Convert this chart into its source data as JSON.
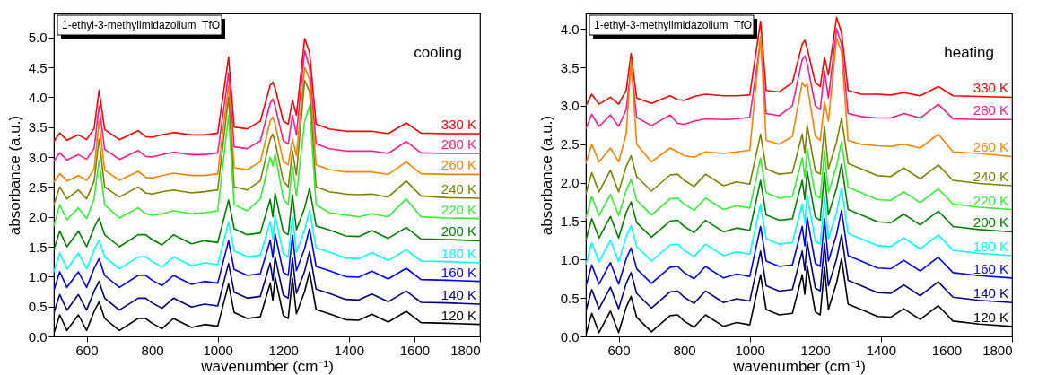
{
  "chart_data": [
    {
      "type": "line",
      "title": "1-ethyl-3-methylimidazolium_TfO",
      "annotations": [
        "cooling"
      ],
      "xlabel": "wavenumber (cm⁻¹)",
      "ylabel": "absorbance (a.u.)",
      "legend": false,
      "x": [
        500,
        518,
        540,
        575,
        600,
        623,
        638,
        655,
        700,
        757,
        780,
        800,
        830,
        865,
        920,
        960,
        1000,
        1033,
        1050,
        1090,
        1130,
        1160,
        1168,
        1175,
        1200,
        1215,
        1228,
        1240,
        1265,
        1280,
        1300,
        1340,
        1390,
        1430,
        1470,
        1520,
        1575,
        1620,
        1700,
        1800
      ],
      "xlim": [
        500,
        1800
      ],
      "xticks": [
        600,
        800,
        1000,
        1200,
        1400,
        1600,
        1800
      ],
      "ylim": [
        0,
        5.4
      ],
      "yticks": [
        {
          "value": 0,
          "label": "0.0"
        },
        {
          "value": 0.5,
          "label": "0.5"
        },
        {
          "value": 1,
          "label": "1.0"
        },
        {
          "value": 1.5,
          "label": "1.5"
        },
        {
          "value": 2,
          "label": "2.0"
        },
        {
          "value": 2.5,
          "label": "2.5"
        },
        {
          "value": 3,
          "label": "3.0"
        },
        {
          "value": 3.5,
          "label": "3.5"
        },
        {
          "value": 4,
          "label": "4.0"
        },
        {
          "value": 4.5,
          "label": "4.5"
        },
        {
          "value": 5,
          "label": "5.0"
        }
      ],
      "series": [
        {
          "name": "330 K",
          "color": "#ff0000",
          "values": [
            3.26,
            3.4,
            3.28,
            3.37,
            3.29,
            3.48,
            4.12,
            3.46,
            3.29,
            3.44,
            3.34,
            3.33,
            3.37,
            3.41,
            3.37,
            3.37,
            3.4,
            4.67,
            3.5,
            3.47,
            3.6,
            4.2,
            4.25,
            4.15,
            3.6,
            3.55,
            3.95,
            3.7,
            4.98,
            4.75,
            3.55,
            3.47,
            3.43,
            3.43,
            3.43,
            3.39,
            3.57,
            3.4,
            3.39,
            3.39
          ]
        },
        {
          "name": "280 K",
          "color": "#ff1a8c",
          "values": [
            2.93,
            3.07,
            2.95,
            3.04,
            2.96,
            3.15,
            3.85,
            3.13,
            2.96,
            3.11,
            3.01,
            3.0,
            3.04,
            3.08,
            3.04,
            3.04,
            3.07,
            4.4,
            3.17,
            3.14,
            3.27,
            3.9,
            3.97,
            3.85,
            3.27,
            3.22,
            3.7,
            3.37,
            4.78,
            4.5,
            3.22,
            3.14,
            3.1,
            3.1,
            3.1,
            3.06,
            3.26,
            3.07,
            3.06,
            3.06
          ]
        },
        {
          "name": "260 K",
          "color": "#ff8000",
          "values": [
            2.58,
            2.72,
            2.6,
            2.69,
            2.61,
            2.8,
            3.6,
            2.78,
            2.61,
            2.76,
            2.66,
            2.65,
            2.69,
            2.73,
            2.69,
            2.69,
            2.72,
            4.2,
            2.82,
            2.79,
            2.92,
            3.6,
            3.67,
            3.55,
            2.92,
            2.87,
            3.3,
            3.02,
            4.5,
            4.3,
            2.87,
            2.79,
            2.75,
            2.75,
            2.75,
            2.71,
            2.92,
            2.72,
            2.71,
            2.71
          ]
        },
        {
          "name": "240 K",
          "color": "#808000",
          "values": [
            2.2,
            2.5,
            2.3,
            2.45,
            2.3,
            2.6,
            3.3,
            2.5,
            2.33,
            2.5,
            2.4,
            2.38,
            2.42,
            2.45,
            2.4,
            2.42,
            2.45,
            4.0,
            2.5,
            2.45,
            2.6,
            3.3,
            3.38,
            3.25,
            2.6,
            2.5,
            3.1,
            2.7,
            4.28,
            4.1,
            2.5,
            2.42,
            2.38,
            2.37,
            2.38,
            2.33,
            2.6,
            2.35,
            2.32,
            2.31
          ]
        },
        {
          "name": "220 K",
          "color": "#33ee33",
          "values": [
            1.85,
            2.2,
            1.95,
            2.15,
            1.97,
            2.3,
            2.95,
            2.2,
            1.98,
            2.15,
            2.05,
            2.03,
            2.05,
            2.1,
            2.05,
            2.07,
            2.1,
            3.7,
            2.2,
            2.1,
            2.3,
            3.0,
            2.85,
            3.05,
            2.3,
            2.2,
            2.85,
            2.35,
            3.6,
            3.86,
            2.2,
            2.07,
            2.03,
            2.0,
            2.05,
            2.0,
            2.3,
            2.0,
            1.98,
            1.97
          ]
        },
        {
          "name": "200 K",
          "color": "#008000",
          "values": [
            1.45,
            1.76,
            1.5,
            1.76,
            1.5,
            1.82,
            1.98,
            1.7,
            1.5,
            1.7,
            1.7,
            1.62,
            1.53,
            1.7,
            1.55,
            1.6,
            1.57,
            2.28,
            1.8,
            1.7,
            1.73,
            2.29,
            2.0,
            2.39,
            1.75,
            1.7,
            2.37,
            1.78,
            2.15,
            2.48,
            1.85,
            1.78,
            1.68,
            1.67,
            1.77,
            1.64,
            1.82,
            1.63,
            1.62,
            1.6
          ]
        },
        {
          "name": "180 K",
          "color": "#00ffff",
          "values": [
            1.08,
            1.39,
            1.13,
            1.39,
            1.13,
            1.45,
            1.61,
            1.33,
            1.13,
            1.33,
            1.33,
            1.25,
            1.16,
            1.33,
            1.18,
            1.23,
            1.2,
            1.91,
            1.43,
            1.33,
            1.36,
            1.92,
            1.63,
            2.02,
            1.38,
            1.33,
            2.0,
            1.41,
            1.78,
            2.11,
            1.48,
            1.41,
            1.31,
            1.3,
            1.4,
            1.27,
            1.45,
            1.26,
            1.25,
            1.23
          ]
        },
        {
          "name": "160 K",
          "color": "#0000ff",
          "values": [
            0.77,
            1.08,
            0.82,
            1.08,
            0.82,
            1.14,
            1.3,
            1.02,
            0.82,
            1.02,
            1.02,
            0.94,
            0.85,
            1.02,
            0.87,
            0.92,
            0.89,
            1.6,
            1.12,
            1.02,
            1.05,
            1.61,
            1.32,
            1.71,
            1.07,
            1.02,
            1.69,
            1.1,
            1.47,
            1.8,
            1.17,
            1.1,
            1.0,
            0.99,
            1.09,
            0.96,
            1.14,
            0.95,
            0.94,
            0.92
          ]
        },
        {
          "name": "140 K",
          "color": "#000080",
          "values": [
            0.39,
            0.7,
            0.44,
            0.7,
            0.44,
            0.76,
            0.92,
            0.64,
            0.44,
            0.64,
            0.64,
            0.56,
            0.47,
            0.64,
            0.49,
            0.54,
            0.51,
            1.22,
            0.74,
            0.64,
            0.67,
            1.23,
            0.94,
            1.33,
            0.69,
            0.64,
            1.31,
            0.72,
            1.09,
            1.42,
            0.79,
            0.72,
            0.62,
            0.61,
            0.71,
            0.58,
            0.76,
            0.57,
            0.56,
            0.54
          ]
        },
        {
          "name": "120 K",
          "color": "#000000",
          "values": [
            0.05,
            0.36,
            0.1,
            0.36,
            0.1,
            0.42,
            0.58,
            0.3,
            0.1,
            0.3,
            0.3,
            0.22,
            0.13,
            0.3,
            0.15,
            0.2,
            0.17,
            0.88,
            0.4,
            0.3,
            0.33,
            0.89,
            0.6,
            0.99,
            0.35,
            0.3,
            0.97,
            0.38,
            0.75,
            1.08,
            0.45,
            0.38,
            0.28,
            0.27,
            0.37,
            0.24,
            0.42,
            0.23,
            0.22,
            0.2
          ]
        }
      ]
    },
    {
      "type": "line",
      "title": "1-ethyl-3-methylimidazolium_TfO",
      "annotations": [
        "heating"
      ],
      "xlabel": "wavenumber (cm⁻¹)",
      "ylabel": "absorbance (a.u.)",
      "legend": false,
      "x": [
        500,
        518,
        540,
        575,
        600,
        623,
        638,
        655,
        700,
        757,
        780,
        800,
        830,
        865,
        920,
        960,
        1000,
        1033,
        1050,
        1090,
        1130,
        1160,
        1168,
        1175,
        1200,
        1215,
        1228,
        1240,
        1265,
        1280,
        1300,
        1340,
        1390,
        1430,
        1470,
        1520,
        1575,
        1620,
        1700,
        1800
      ],
      "xlim": [
        500,
        1800
      ],
      "xticks": [
        600,
        800,
        1000,
        1200,
        1400,
        1600,
        1800
      ],
      "ylim": [
        0,
        4.2
      ],
      "yticks": [
        {
          "value": 0,
          "label": "0.0"
        },
        {
          "value": 0.5,
          "label": "0.5"
        },
        {
          "value": 1,
          "label": "1.0"
        },
        {
          "value": 1.5,
          "label": "1.5"
        },
        {
          "value": 2,
          "label": "2.0"
        },
        {
          "value": 2.5,
          "label": "2.5"
        },
        {
          "value": 3,
          "label": "3.0"
        },
        {
          "value": 3.5,
          "label": "3.5"
        },
        {
          "value": 4,
          "label": "4.0"
        }
      ],
      "series": [
        {
          "name": "330 K",
          "color": "#ff0000",
          "values": [
            3.0,
            3.15,
            3.02,
            3.11,
            3.02,
            3.2,
            3.68,
            3.1,
            3.03,
            3.13,
            3.08,
            3.07,
            3.12,
            3.15,
            3.13,
            3.13,
            3.14,
            4.1,
            3.2,
            3.18,
            3.3,
            3.8,
            3.85,
            3.75,
            3.3,
            3.25,
            3.63,
            3.4,
            4.15,
            3.95,
            3.2,
            3.15,
            3.15,
            3.14,
            3.17,
            3.13,
            3.25,
            3.13,
            3.12,
            3.11
          ]
        },
        {
          "name": "280 K",
          "color": "#ff1a8c",
          "values": [
            2.7,
            2.89,
            2.73,
            2.88,
            2.73,
            2.95,
            3.5,
            2.85,
            2.74,
            2.88,
            2.77,
            2.76,
            2.8,
            2.83,
            2.82,
            2.83,
            2.85,
            3.85,
            2.9,
            2.87,
            3.0,
            3.6,
            3.65,
            3.55,
            3.0,
            2.95,
            3.45,
            3.1,
            4.0,
            3.8,
            2.9,
            2.86,
            2.84,
            2.84,
            2.9,
            2.84,
            3.02,
            2.83,
            2.82,
            2.82
          ]
        },
        {
          "name": "260 K",
          "color": "#ff8000",
          "values": [
            2.25,
            2.5,
            2.27,
            2.45,
            2.27,
            2.63,
            3.6,
            2.5,
            2.27,
            2.45,
            2.4,
            2.35,
            2.33,
            2.4,
            2.38,
            2.4,
            2.42,
            3.9,
            2.55,
            2.5,
            2.6,
            3.3,
            3.25,
            3.28,
            2.6,
            2.55,
            3.05,
            2.8,
            3.88,
            3.7,
            2.55,
            2.5,
            2.48,
            2.47,
            2.5,
            2.45,
            2.63,
            2.4,
            2.38,
            2.34
          ]
        },
        {
          "name": "240 K",
          "color": "#808000",
          "values": [
            1.85,
            2.13,
            1.88,
            2.16,
            1.88,
            2.21,
            2.35,
            2.08,
            1.89,
            2.1,
            2.11,
            2.03,
            1.95,
            2.11,
            1.96,
            2.01,
            1.98,
            2.63,
            2.18,
            2.11,
            2.13,
            2.63,
            2.38,
            2.75,
            2.15,
            2.11,
            2.73,
            2.18,
            2.53,
            2.84,
            2.25,
            2.18,
            2.09,
            2.08,
            2.19,
            2.05,
            2.23,
            2.03,
            1.99,
            1.96
          ]
        },
        {
          "name": "220 K",
          "color": "#33ee33",
          "values": [
            1.54,
            1.82,
            1.57,
            1.85,
            1.57,
            1.9,
            2.04,
            1.77,
            1.58,
            1.79,
            1.8,
            1.72,
            1.64,
            1.8,
            1.65,
            1.7,
            1.67,
            2.32,
            1.87,
            1.8,
            1.82,
            2.32,
            2.07,
            2.44,
            1.84,
            1.8,
            2.42,
            1.87,
            2.22,
            2.53,
            1.94,
            1.87,
            1.78,
            1.77,
            1.88,
            1.74,
            1.92,
            1.72,
            1.68,
            1.65
          ]
        },
        {
          "name": "200 K",
          "color": "#008000",
          "values": [
            1.25,
            1.53,
            1.28,
            1.56,
            1.28,
            1.61,
            1.75,
            1.48,
            1.29,
            1.5,
            1.51,
            1.43,
            1.35,
            1.51,
            1.36,
            1.41,
            1.38,
            2.03,
            1.58,
            1.51,
            1.53,
            2.03,
            1.78,
            2.15,
            1.55,
            1.51,
            2.13,
            1.58,
            1.93,
            2.24,
            1.65,
            1.58,
            1.49,
            1.48,
            1.59,
            1.45,
            1.63,
            1.43,
            1.39,
            1.36
          ]
        },
        {
          "name": "180 K",
          "color": "#00ffff",
          "values": [
            0.94,
            1.22,
            0.97,
            1.25,
            0.97,
            1.3,
            1.44,
            1.17,
            0.98,
            1.19,
            1.2,
            1.12,
            1.04,
            1.2,
            1.05,
            1.1,
            1.07,
            1.72,
            1.27,
            1.2,
            1.22,
            1.72,
            1.47,
            1.84,
            1.24,
            1.2,
            1.82,
            1.27,
            1.62,
            1.93,
            1.34,
            1.27,
            1.18,
            1.17,
            1.28,
            1.14,
            1.32,
            1.12,
            1.08,
            1.05
          ]
        },
        {
          "name": "160 K",
          "color": "#0000ff",
          "values": [
            0.65,
            0.93,
            0.68,
            0.96,
            0.68,
            1.01,
            1.15,
            0.88,
            0.69,
            0.9,
            0.91,
            0.83,
            0.75,
            0.91,
            0.76,
            0.81,
            0.78,
            1.43,
            0.98,
            0.91,
            0.93,
            1.43,
            1.18,
            1.55,
            0.95,
            0.91,
            1.53,
            0.98,
            1.33,
            1.64,
            1.05,
            0.98,
            0.89,
            0.88,
            0.99,
            0.85,
            1.03,
            0.83,
            0.79,
            0.76
          ]
        },
        {
          "name": "140 K",
          "color": "#000080",
          "values": [
            0.33,
            0.61,
            0.36,
            0.64,
            0.36,
            0.69,
            0.83,
            0.56,
            0.37,
            0.58,
            0.59,
            0.51,
            0.43,
            0.59,
            0.44,
            0.49,
            0.46,
            1.11,
            0.66,
            0.59,
            0.61,
            1.11,
            0.86,
            1.23,
            0.63,
            0.59,
            1.21,
            0.66,
            1.01,
            1.32,
            0.73,
            0.66,
            0.57,
            0.56,
            0.67,
            0.53,
            0.71,
            0.51,
            0.47,
            0.44
          ]
        },
        {
          "name": "120 K",
          "color": "#000000",
          "values": [
            0.02,
            0.3,
            0.05,
            0.33,
            0.05,
            0.38,
            0.52,
            0.25,
            0.06,
            0.27,
            0.28,
            0.2,
            0.12,
            0.28,
            0.13,
            0.18,
            0.15,
            0.8,
            0.35,
            0.28,
            0.3,
            0.8,
            0.55,
            0.92,
            0.32,
            0.28,
            0.9,
            0.35,
            0.7,
            1.01,
            0.42,
            0.35,
            0.26,
            0.25,
            0.36,
            0.22,
            0.4,
            0.2,
            0.16,
            0.13
          ]
        }
      ]
    }
  ]
}
